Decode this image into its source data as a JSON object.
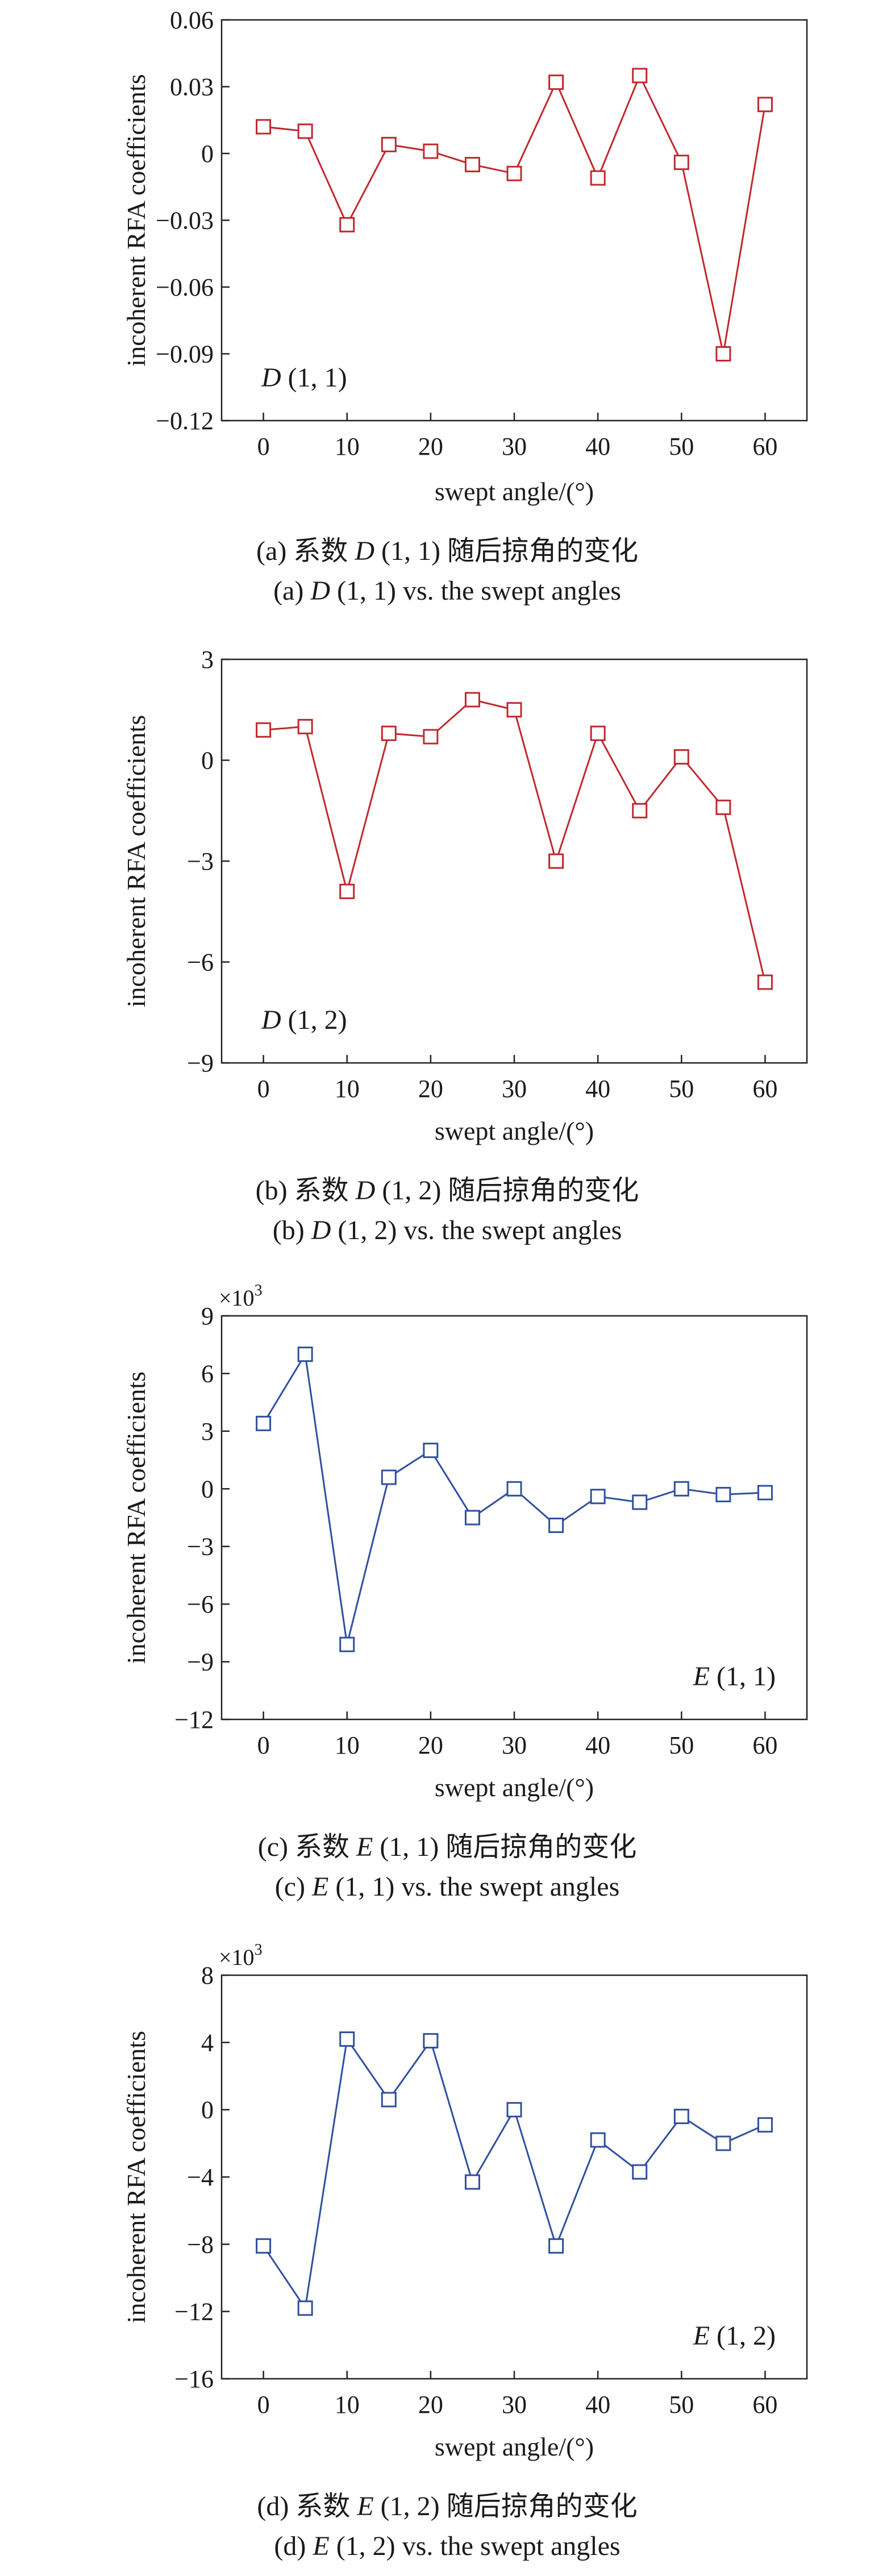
{
  "chart_data": [
    {
      "type": "line",
      "panel_label": [
        "D",
        " (1, 1)"
      ],
      "xlabel": "swept angle/(°)",
      "ylabel": "incoherent RFA coefficients",
      "multiplier": "",
      "x": [
        0,
        5,
        10,
        15,
        20,
        25,
        30,
        35,
        40,
        45,
        50,
        55,
        60
      ],
      "series": [
        {
          "values": [
            0.012,
            0.01,
            -0.032,
            0.004,
            0.001,
            -0.005,
            -0.009,
            0.032,
            -0.011,
            0.035,
            -0.004,
            -0.09,
            0.022
          ]
        }
      ],
      "xlim": [
        -5,
        65
      ],
      "ylim": [
        -0.12,
        0.06
      ],
      "xticks": [
        0,
        10,
        20,
        30,
        40,
        50,
        60
      ],
      "yticks": [
        0.06,
        0.03,
        0,
        -0.03,
        -0.06,
        -0.09,
        -0.12
      ],
      "ytick_labels": [
        "0.06",
        "0.03",
        "0",
        "−0.03",
        "−0.06",
        "−0.09",
        "−0.12"
      ],
      "color": "#c0282d",
      "label_position": "bottom-left",
      "caption_cn": [
        "(a) 系数 ",
        "D",
        " (1, 1) 随后掠角的变化"
      ],
      "caption_en": [
        "(a) ",
        "D",
        " (1, 1) vs. the swept angles"
      ]
    },
    {
      "type": "line",
      "panel_label": [
        "D",
        " (1, 2)"
      ],
      "xlabel": "swept angle/(°)",
      "ylabel": "incoherent RFA coefficients",
      "multiplier": "",
      "x": [
        0,
        5,
        10,
        15,
        20,
        25,
        30,
        35,
        40,
        45,
        50,
        55,
        60
      ],
      "series": [
        {
          "values": [
            0.9,
            1.0,
            -3.9,
            0.8,
            0.7,
            1.8,
            1.5,
            -3.0,
            0.8,
            -1.5,
            0.1,
            -1.4,
            -6.6
          ]
        }
      ],
      "xlim": [
        -5,
        65
      ],
      "ylim": [
        -9,
        3
      ],
      "xticks": [
        0,
        10,
        20,
        30,
        40,
        50,
        60
      ],
      "yticks": [
        3,
        0,
        -3,
        -6,
        -9
      ],
      "ytick_labels": [
        "3",
        "0",
        "−3",
        "−6",
        "−9"
      ],
      "color": "#c0282d",
      "label_position": "bottom-left",
      "caption_cn": [
        "(b) 系数 ",
        "D",
        " (1, 2) 随后掠角的变化"
      ],
      "caption_en": [
        "(b) ",
        "D",
        " (1, 2) vs. the swept angles"
      ]
    },
    {
      "type": "line",
      "panel_label": [
        "E",
        " (1, 1)"
      ],
      "xlabel": "swept angle/(°)",
      "ylabel": "incoherent RFA coefficients",
      "multiplier": [
        "×10",
        "3"
      ],
      "x": [
        0,
        5,
        10,
        15,
        20,
        25,
        30,
        35,
        40,
        45,
        50,
        55,
        60
      ],
      "series": [
        {
          "values": [
            3.4,
            7.0,
            -8.1,
            0.6,
            2.0,
            -1.5,
            0.0,
            -1.9,
            -0.4,
            -0.7,
            0.0,
            -0.3,
            -0.2
          ]
        }
      ],
      "xlim": [
        -5,
        65
      ],
      "ylim": [
        -12,
        9
      ],
      "xticks": [
        0,
        10,
        20,
        30,
        40,
        50,
        60
      ],
      "yticks": [
        9,
        6,
        3,
        0,
        -3,
        -6,
        -9,
        -12
      ],
      "ytick_labels": [
        "9",
        "6",
        "3",
        "0",
        "−3",
        "−6",
        "−9",
        "−12"
      ],
      "color": "#2f4f9e",
      "label_position": "bottom-right",
      "caption_cn": [
        "(c) 系数 ",
        "E",
        " (1, 1) 随后掠角的变化"
      ],
      "caption_en": [
        "(c) ",
        "E",
        " (1, 1) vs. the swept angles"
      ]
    },
    {
      "type": "line",
      "panel_label": [
        "E",
        " (1, 2)"
      ],
      "xlabel": "swept angle/(°)",
      "ylabel": "incoherent RFA coefficients",
      "multiplier": [
        "×10",
        "3"
      ],
      "x": [
        0,
        5,
        10,
        15,
        20,
        25,
        30,
        35,
        40,
        45,
        50,
        55,
        60
      ],
      "series": [
        {
          "values": [
            -8.1,
            -11.8,
            4.2,
            0.6,
            4.1,
            -4.3,
            0.0,
            -8.1,
            -1.8,
            -3.7,
            -0.4,
            -2.0,
            -0.9
          ]
        }
      ],
      "xlim": [
        -5,
        65
      ],
      "ylim": [
        -16,
        8
      ],
      "xticks": [
        0,
        10,
        20,
        30,
        40,
        50,
        60
      ],
      "yticks": [
        8,
        4,
        0,
        -4,
        -8,
        -12,
        -16
      ],
      "ytick_labels": [
        "8",
        "4",
        "0",
        "−4",
        "−8",
        "−12",
        "−16"
      ],
      "color": "#2f4f9e",
      "label_position": "bottom-right",
      "caption_cn": [
        "(d) 系数 ",
        "E",
        " (1, 2) 随后掠角的变化"
      ],
      "caption_en": [
        "(d) ",
        "E",
        " (1, 2) vs. the swept angles"
      ]
    }
  ]
}
